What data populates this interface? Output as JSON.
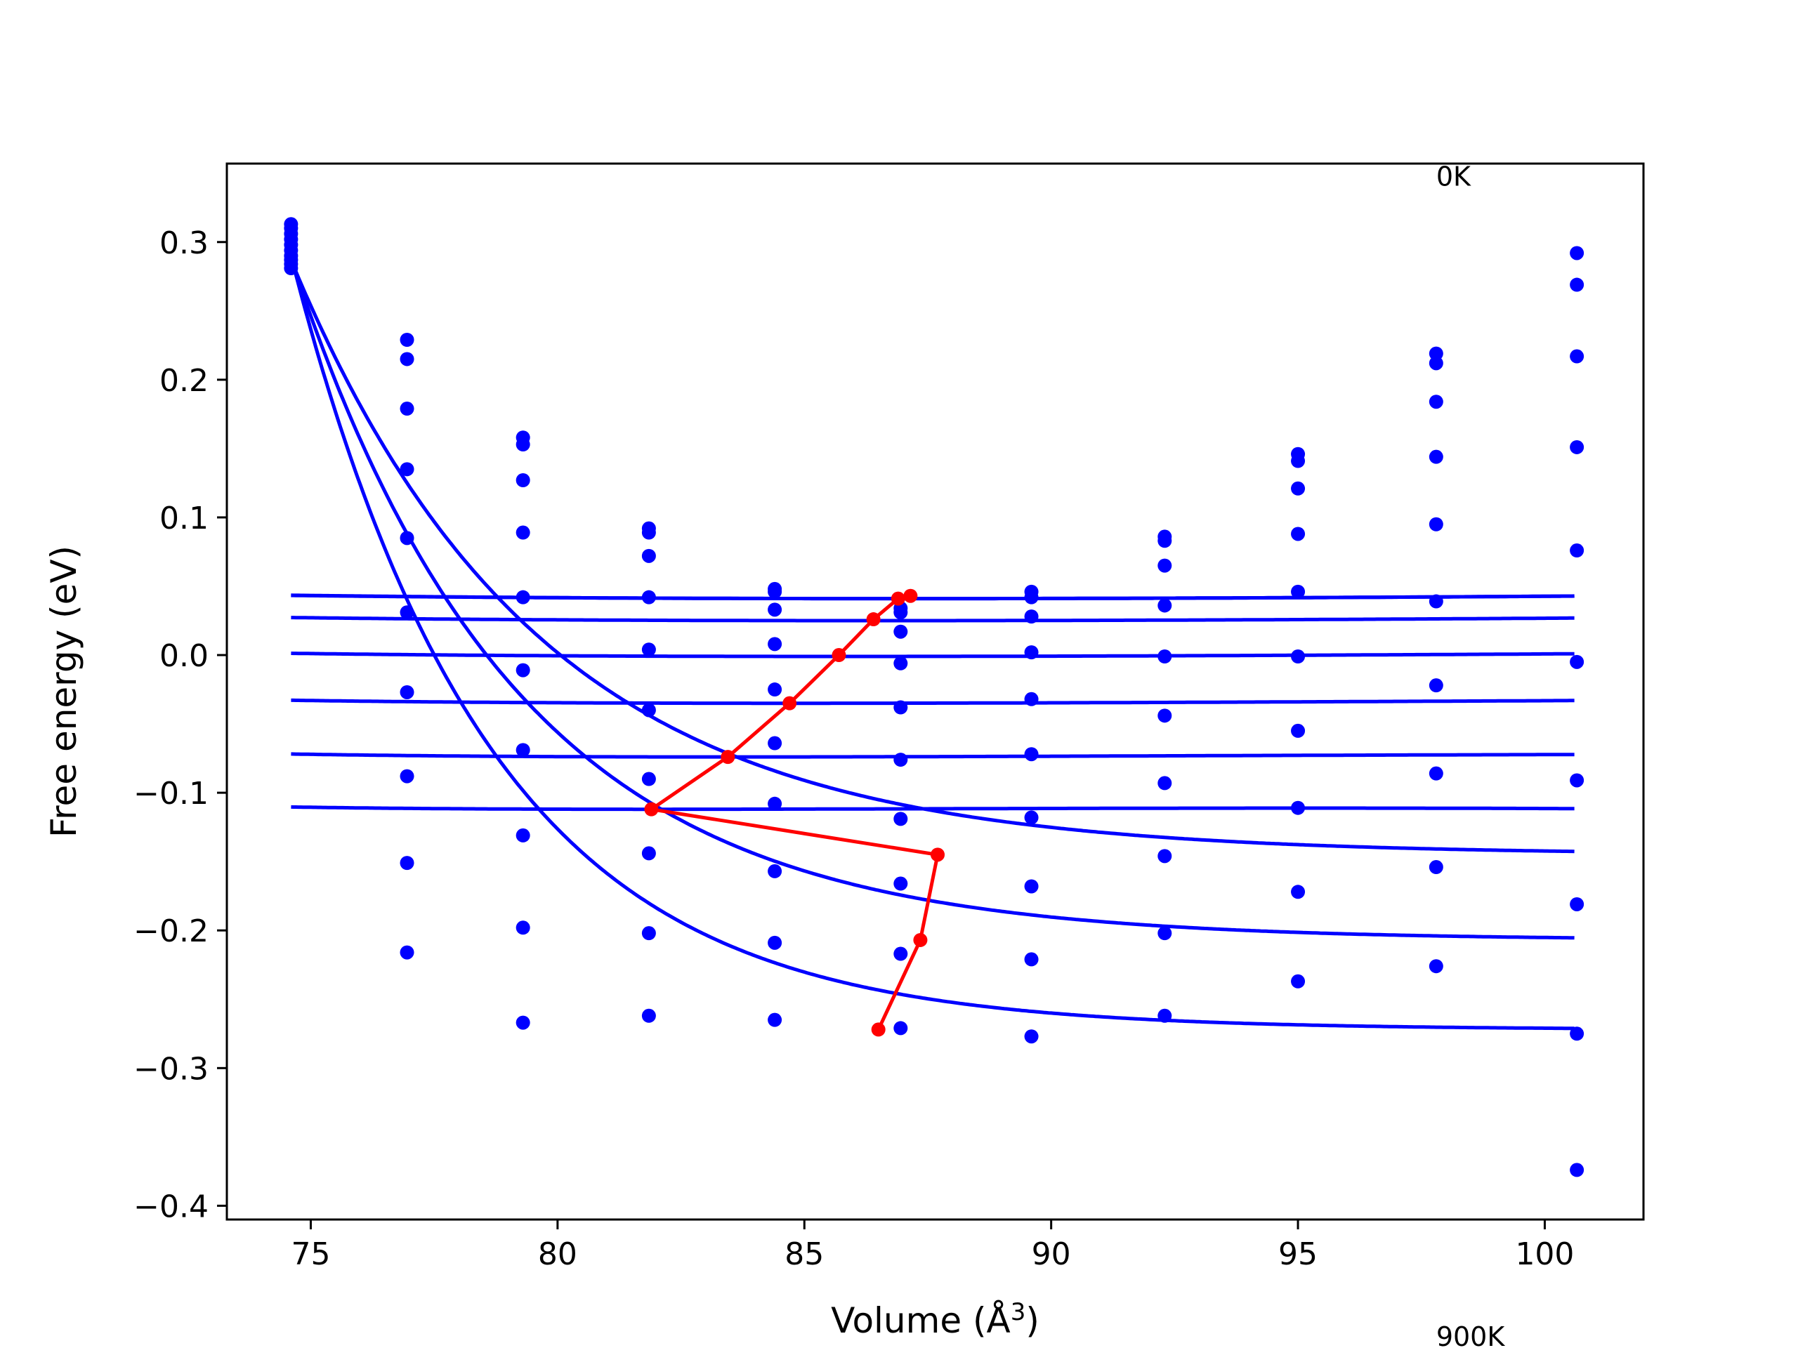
{
  "chart_data": {
    "type": "line",
    "title": "",
    "xlabel": "Volume (Å",
    "xlabel_sup": "3",
    "xlabel_close": ")",
    "ylabel": "Free energy (eV)",
    "xlim": [
      73.3,
      102.0
    ],
    "ylim": [
      -0.41,
      0.357
    ],
    "xticks": [
      75,
      80,
      85,
      90,
      95,
      100
    ],
    "xtick_labels": [
      "75",
      "80",
      "85",
      "90",
      "95",
      "100"
    ],
    "yticks": [
      -0.4,
      -0.3,
      -0.2,
      -0.1,
      0.0,
      0.1,
      0.2,
      0.3
    ],
    "ytick_labels": [
      "−0.4",
      "−0.3",
      "−0.2",
      "−0.1",
      "0.0",
      "0.1",
      "0.2",
      "0.3"
    ],
    "grid": false,
    "annotations": [
      "0K",
      "900K"
    ],
    "colors": {
      "points": "#0000ff",
      "fits": "#0000ff",
      "minima": "#ff0000"
    },
    "volumes": [
      74.6,
      76.95,
      79.3,
      81.85,
      84.4,
      86.95,
      89.6,
      92.3,
      95.0,
      97.8,
      100.65
    ],
    "points": [
      [
        0.313,
        0.229,
        0.158,
        0.092,
        0.048,
        0.034,
        0.046,
        0.086,
        0.146,
        0.219,
        0.292
      ],
      [
        0.31,
        0.215,
        0.153,
        0.089,
        0.046,
        0.031,
        0.042,
        0.083,
        0.141,
        0.212,
        0.269
      ],
      [
        0.306,
        0.179,
        0.127,
        0.072,
        0.033,
        0.017,
        0.028,
        0.065,
        0.121,
        0.184,
        0.217
      ],
      [
        0.302,
        0.135,
        0.089,
        0.042,
        0.008,
        -0.006,
        0.002,
        0.036,
        0.088,
        0.144,
        0.151
      ],
      [
        0.298,
        0.085,
        0.042,
        0.004,
        -0.025,
        -0.038,
        -0.032,
        -0.001,
        0.046,
        0.095,
        0.076
      ],
      [
        0.294,
        0.031,
        -0.011,
        -0.04,
        -0.064,
        -0.076,
        -0.072,
        -0.044,
        -0.001,
        0.039,
        -0.005
      ],
      [
        0.29,
        -0.027,
        -0.069,
        -0.09,
        -0.108,
        -0.119,
        -0.118,
        -0.093,
        -0.055,
        -0.022,
        -0.091
      ],
      [
        0.287,
        -0.088,
        -0.131,
        -0.144,
        -0.157,
        -0.166,
        -0.168,
        -0.146,
        -0.111,
        -0.086,
        -0.181
      ],
      [
        0.284,
        -0.151,
        -0.198,
        -0.202,
        -0.209,
        -0.217,
        -0.221,
        -0.202,
        -0.172,
        -0.154,
        -0.275
      ],
      [
        0.281,
        -0.216,
        -0.267,
        -0.262,
        -0.265,
        -0.271,
        -0.277,
        -0.262,
        -0.237,
        -0.226,
        -0.374
      ]
    ],
    "fits": [
      {
        "V0": 87.0,
        "E0": 0.041,
        "B0": 0.00222,
        "B0p": 3.5,
        "vmax": 100.6
      },
      {
        "V0": 86.9,
        "E0": 0.041,
        "B0": 0.00213,
        "B0p": 3.5,
        "vmax": 100.6
      },
      {
        "V0": 86.4,
        "E0": 0.025,
        "B0": 0.00215,
        "B0p": 4.5,
        "vmax": 100.6
      },
      {
        "V0": 85.7,
        "E0": -0.001,
        "B0": 0.00225,
        "B0p": 6.5,
        "vmax": 100.6
      },
      {
        "V0": 84.7,
        "E0": -0.035,
        "B0": 0.00241,
        "B0p": 9.0,
        "vmax": 100.6
      },
      {
        "V0": 83.4,
        "E0": -0.074,
        "B0": 0.00285,
        "B0p": 13.0,
        "vmax": 100.6
      },
      {
        "V0": 81.9,
        "E0": -0.112,
        "B0": 0.003,
        "B0p": 18.0,
        "vmax": 100.6
      },
      {
        "V0": 87.7,
        "E0": -0.145,
        "B0": 0.0,
        "B0p": 0.0,
        "E_left": 0.287,
        "k": 0.2,
        "vmax": 100.6
      },
      {
        "V0": 87.3,
        "E0": -0.207,
        "B0": 0.0,
        "B0p": 0.0,
        "E_left": 0.288,
        "k": 0.22,
        "vmax": 100.6
      },
      {
        "V0": 86.5,
        "E0": -0.272,
        "B0": 0.0,
        "B0p": 0.0,
        "E_left": 0.29,
        "k": 0.25,
        "vmax": 100.6
      }
    ],
    "minima": {
      "x": [
        87.15,
        86.9,
        86.4,
        85.7,
        84.7,
        83.45,
        81.9,
        87.7,
        87.35,
        86.5
      ],
      "y": [
        0.043,
        0.041,
        0.026,
        0.0,
        -0.035,
        -0.074,
        -0.112,
        -0.145,
        -0.207,
        -0.272
      ]
    }
  }
}
